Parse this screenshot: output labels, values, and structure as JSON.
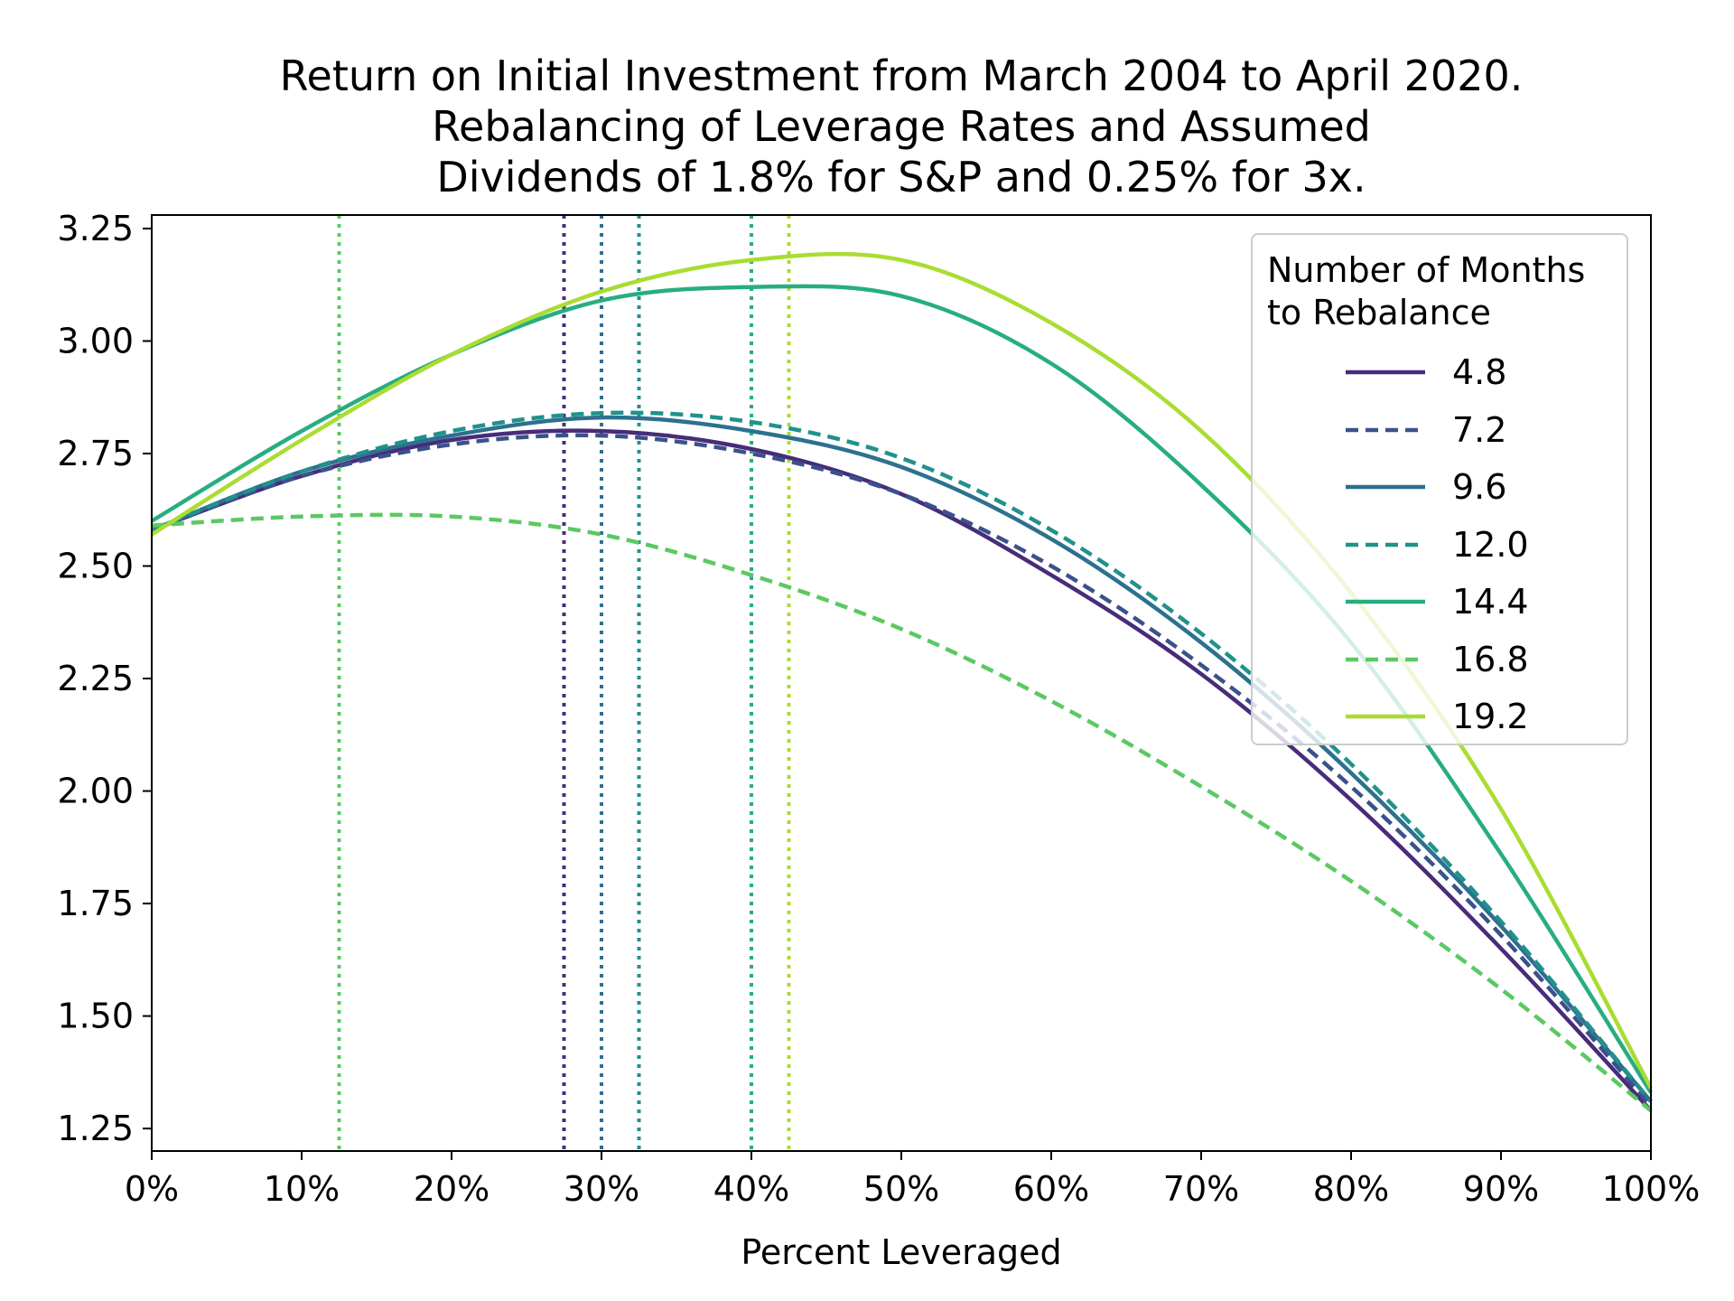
{
  "chart_data": {
    "type": "line",
    "title": [
      "Return on Initial Investment from March 2004 to April 2020.",
      "Rebalancing of Leverage Rates and Assumed",
      "Dividends of 1.8% for S&P and 0.25% for 3x."
    ],
    "xlabel": "Percent Leveraged",
    "ylabel": "",
    "xlim": [
      0,
      100
    ],
    "ylim": [
      1.2,
      3.28
    ],
    "x_ticks": [
      0,
      10,
      20,
      30,
      40,
      50,
      60,
      70,
      80,
      90,
      100
    ],
    "x_tick_labels": [
      "0%",
      "10%",
      "20%",
      "30%",
      "40%",
      "50%",
      "60%",
      "70%",
      "80%",
      "90%",
      "100%"
    ],
    "y_ticks": [
      1.25,
      1.5,
      1.75,
      2.0,
      2.25,
      2.5,
      2.75,
      3.0,
      3.25
    ],
    "y_tick_labels": [
      "1.25",
      "1.50",
      "1.75",
      "2.00",
      "2.25",
      "2.50",
      "2.75",
      "3.00",
      "3.25"
    ],
    "grid": false,
    "legend": {
      "title": [
        "Number of Months",
        "to Rebalance"
      ],
      "placement": "top-right"
    },
    "x": [
      0,
      10,
      20,
      30,
      40,
      50,
      60,
      70,
      80,
      90,
      100
    ],
    "series": [
      {
        "name": "4.8",
        "color": "#472c7a",
        "dash": "solid",
        "values": [
          2.58,
          2.7,
          2.78,
          2.8,
          2.76,
          2.66,
          2.48,
          2.26,
          1.98,
          1.65,
          1.29
        ],
        "optimum_x": 27.5
      },
      {
        "name": "7.2",
        "color": "#3b518b",
        "dash": "dashed",
        "values": [
          2.58,
          2.7,
          2.77,
          2.79,
          2.75,
          2.66,
          2.5,
          2.28,
          2.01,
          1.68,
          1.3
        ],
        "optimum_x": 30
      },
      {
        "name": "9.6",
        "color": "#2c718e",
        "dash": "solid",
        "values": [
          2.58,
          2.71,
          2.79,
          2.83,
          2.8,
          2.72,
          2.56,
          2.33,
          2.04,
          1.7,
          1.31
        ],
        "optimum_x": 30
      },
      {
        "name": "12.0",
        "color": "#21918c",
        "dash": "dashed",
        "values": [
          2.58,
          2.71,
          2.8,
          2.84,
          2.82,
          2.74,
          2.58,
          2.35,
          2.06,
          1.71,
          1.31
        ],
        "optimum_x": 32.5
      },
      {
        "name": "14.4",
        "color": "#27ad81",
        "dash": "solid",
        "values": [
          2.6,
          2.8,
          2.97,
          3.09,
          3.12,
          3.1,
          2.95,
          2.68,
          2.33,
          1.86,
          1.33
        ],
        "optimum_x": 40
      },
      {
        "name": "16.8",
        "color": "#5cc863",
        "dash": "dashed",
        "values": [
          2.59,
          2.61,
          2.61,
          2.57,
          2.48,
          2.36,
          2.2,
          2.01,
          1.8,
          1.56,
          1.29
        ],
        "optimum_x": 12.5
      },
      {
        "name": "19.2",
        "color": "#aadc32",
        "dash": "solid",
        "values": [
          2.57,
          2.78,
          2.97,
          3.11,
          3.18,
          3.18,
          3.04,
          2.8,
          2.44,
          1.96,
          1.34
        ],
        "optimum_x": 42.5
      }
    ]
  }
}
